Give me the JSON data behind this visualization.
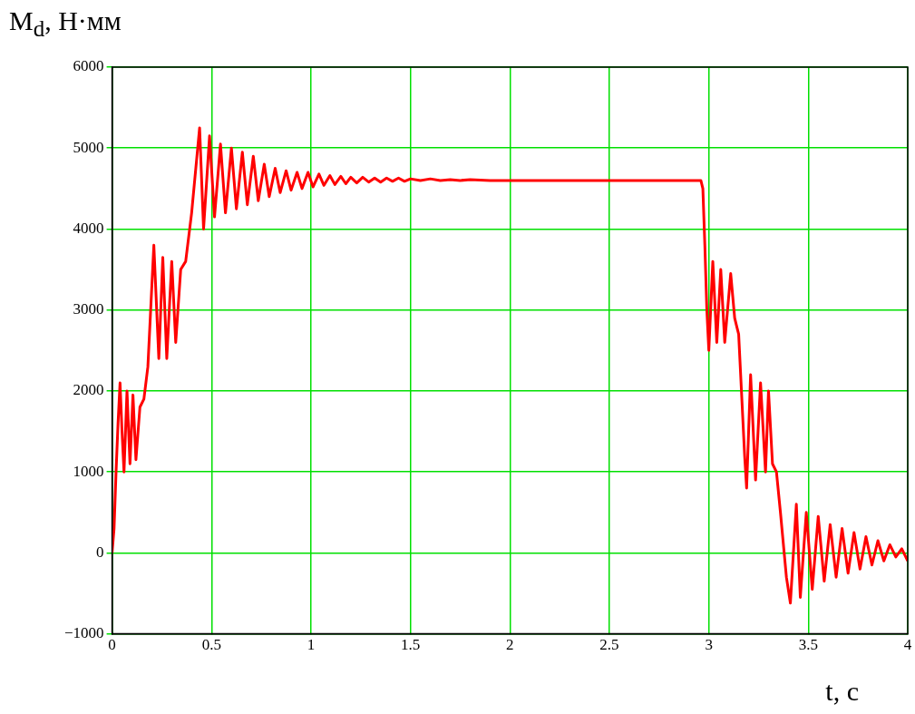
{
  "chart_data": {
    "type": "line",
    "xlabel": "t, с",
    "ylabel": "M$_{d}$, Н·мм",
    "xlim": [
      0,
      4
    ],
    "ylim": [
      -1000,
      6000
    ],
    "xticks": [
      0,
      0.5,
      1,
      1.5,
      2,
      2.5,
      3,
      3.5,
      4
    ],
    "yticks": [
      -1000,
      0,
      1000,
      2000,
      3000,
      4000,
      5000,
      6000
    ],
    "grid": true,
    "legend": false,
    "marker": "none",
    "line_style": "solid",
    "x": [
      0,
      0.01,
      0.02,
      0.03,
      0.04,
      0.05,
      0.06,
      0.075,
      0.09,
      0.105,
      0.12,
      0.14,
      0.16,
      0.18,
      0.21,
      0.235,
      0.255,
      0.275,
      0.3,
      0.32,
      0.345,
      0.37,
      0.4,
      0.44,
      0.46,
      0.49,
      0.515,
      0.545,
      0.57,
      0.6,
      0.625,
      0.655,
      0.68,
      0.71,
      0.735,
      0.765,
      0.79,
      0.82,
      0.845,
      0.875,
      0.9,
      0.93,
      0.955,
      0.985,
      1.01,
      1.04,
      1.065,
      1.095,
      1.12,
      1.15,
      1.175,
      1.2,
      1.23,
      1.26,
      1.29,
      1.32,
      1.35,
      1.38,
      1.41,
      1.44,
      1.47,
      1.5,
      1.55,
      1.6,
      1.65,
      1.7,
      1.75,
      1.8,
      1.9,
      2,
      2.96,
      2.97,
      2.98,
      2.99,
      3.0,
      3.02,
      3.04,
      3.06,
      3.08,
      3.11,
      3.13,
      3.14,
      3.15,
      3.18,
      3.19,
      3.21,
      3.235,
      3.26,
      3.285,
      3.3,
      3.32,
      3.34,
      3.36,
      3.39,
      3.41,
      3.44,
      3.46,
      3.49,
      3.52,
      3.55,
      3.58,
      3.61,
      3.64,
      3.67,
      3.7,
      3.73,
      3.76,
      3.79,
      3.82,
      3.85,
      3.88,
      3.91,
      3.94,
      3.97,
      4
    ],
    "series": [
      {
        "color": "#ff0000",
        "values": [
          0,
          300,
          1000,
          1600,
          2100,
          1500,
          1000,
          2000,
          1100,
          1950,
          1150,
          1800,
          1900,
          2300,
          3800,
          2400,
          3650,
          2400,
          3600,
          2600,
          3500,
          3600,
          4200,
          5250,
          4000,
          5150,
          4150,
          5050,
          4200,
          5000,
          4250,
          4950,
          4300,
          4900,
          4350,
          4800,
          4400,
          4750,
          4450,
          4720,
          4480,
          4700,
          4500,
          4700,
          4520,
          4680,
          4540,
          4660,
          4550,
          4650,
          4560,
          4640,
          4570,
          4640,
          4580,
          4630,
          4580,
          4630,
          4590,
          4630,
          4590,
          4620,
          4600,
          4620,
          4600,
          4610,
          4600,
          4610,
          4600,
          4600,
          4600,
          4500,
          3800,
          3000,
          2500,
          3600,
          2600,
          3500,
          2600,
          3450,
          2900,
          2800,
          2700,
          1200,
          800,
          2200,
          900,
          2100,
          1000,
          2000,
          1100,
          1000,
          500,
          -300,
          -620,
          600,
          -550,
          500,
          -450,
          450,
          -350,
          350,
          -300,
          300,
          -250,
          250,
          -200,
          200,
          -150,
          150,
          -100,
          100,
          -50,
          50,
          -100
        ]
      }
    ]
  }
}
